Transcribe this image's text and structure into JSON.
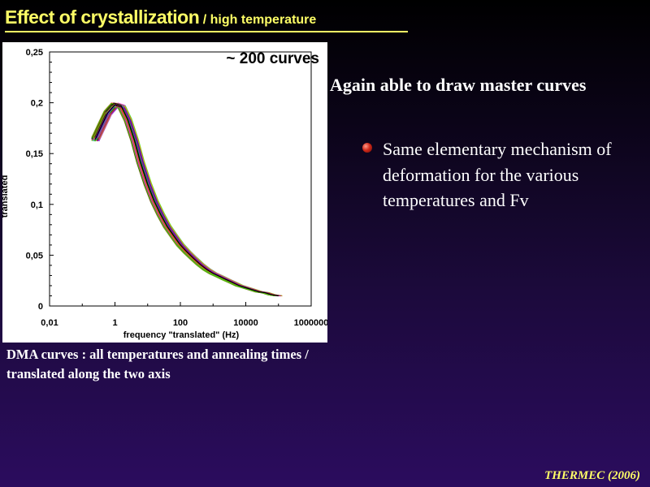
{
  "slide": {
    "title_main": "Effect of crystallization",
    "title_sub": " / high temperature",
    "caption": "DMA curves : all temperatures and annealing times / translated along the two axis",
    "right_heading": "Again able to draw master curves",
    "bullet_text": "Same elementary mechanism of deformation for the various temperatures and Fv",
    "footer": "THERMEC (2006)",
    "colors": {
      "title": "#ffff66",
      "text": "#ffffff",
      "bullet": "#d02a1a"
    }
  },
  "chart_data": {
    "type": "line",
    "annotation": "~ 200 curves",
    "xlabel": "frequency \"translated\" (Hz)",
    "ylabel": "translated",
    "x_scale": "log",
    "xlim": [
      0.01,
      1000000
    ],
    "ylim": [
      0,
      0.25
    ],
    "x_ticks": [
      "0,01",
      "1",
      "100",
      "10000",
      "1000000"
    ],
    "y_ticks": [
      "0",
      "0,05",
      "0,1",
      "0,15",
      "0,2",
      "0,25"
    ],
    "grid": false,
    "series": [
      {
        "x": [
          0.25,
          0.4,
          0.6,
          1,
          1.6,
          2.5,
          4,
          6,
          10,
          16,
          25,
          40,
          63,
          100,
          160,
          250,
          400,
          630,
          1000,
          1600,
          2500,
          4000,
          6300,
          10000,
          16000,
          25000,
          40000,
          63000,
          100000
        ],
        "y": [
          0.164,
          0.178,
          0.19,
          0.198,
          0.196,
          0.183,
          0.163,
          0.142,
          0.12,
          0.103,
          0.09,
          0.078,
          0.069,
          0.06,
          0.053,
          0.047,
          0.041,
          0.036,
          0.032,
          0.029,
          0.026,
          0.023,
          0.02,
          0.018,
          0.016,
          0.014,
          0.013,
          0.011,
          0.01
        ]
      }
    ]
  }
}
